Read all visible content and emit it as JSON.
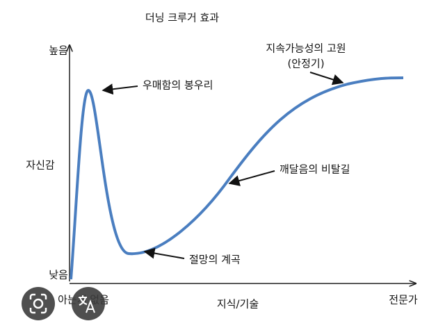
{
  "title": "더닝 크루거 효과",
  "y_axis": {
    "high": "높음",
    "label": "자신감",
    "low": "낮음"
  },
  "x_axis": {
    "start": "아는게 없음",
    "label": "지식/기술",
    "end": "전문가"
  },
  "annotations": {
    "peak": "우매함의 봉우리",
    "valley": "절망의 계곡",
    "slope": "깨달음의 비탈길",
    "plateau": "지속가능성의 고원",
    "plateau_note": "(안정기)"
  }
}
